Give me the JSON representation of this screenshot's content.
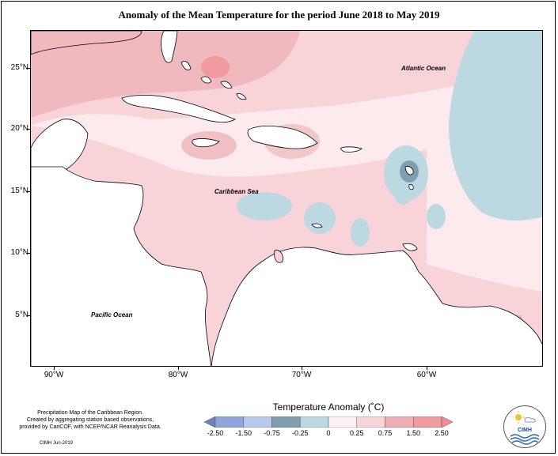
{
  "title": "Anomaly of the Mean Temperature for the period June 2018 to May 2019",
  "map": {
    "latitude_labels": [
      "25°N",
      "20°N",
      "15°N",
      "10°N",
      "5°N"
    ],
    "longitude_labels": [
      "90°W",
      "80°W",
      "70°W",
      "60°W"
    ],
    "regions": {
      "atlantic": "Atlantic Ocean",
      "caribbean": "Caribbean Sea",
      "pacific": "Pacific Ocean"
    }
  },
  "legend": {
    "title": "Temperature Anomaly (˚C)",
    "bins": [
      "-2.50",
      "-1.50",
      "-0.75",
      "-0.25",
      "0",
      "0.25",
      "0.75",
      "1.50",
      "2.50"
    ],
    "colors": [
      "#6f82b7",
      "#8fa6dd",
      "#b9c9ec",
      "#7f9fb1",
      "#bcd8e0",
      "#fdf1f3",
      "#f8d3d8",
      "#ecaeb3",
      "#f19aa0",
      "#f58a92"
    ]
  },
  "credits": {
    "lines": [
      "Precipitation Map of the Caribbean Region.",
      "Created by aggregating station based observations,",
      "provided by CariCOF, with NCEP/NCAR Reanalysis Data."
    ],
    "note": "CIMH Jun-2019"
  },
  "logo": {
    "text": "CIMH",
    "icon": "sun-cloud-wave-icon"
  }
}
